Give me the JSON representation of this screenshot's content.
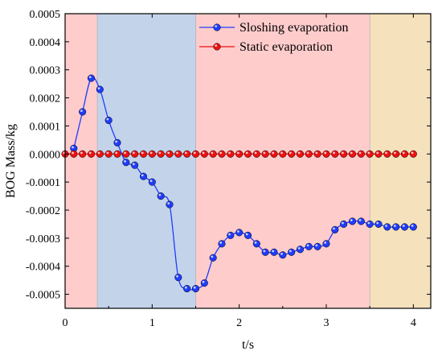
{
  "chart_data": {
    "type": "line",
    "title": "",
    "xlabel": "t/s",
    "ylabel": "BOG Mass/kg",
    "xlim": [
      0,
      4.2
    ],
    "ylim": [
      -0.00055,
      0.0005
    ],
    "x_ticks": [
      0,
      1,
      2,
      3,
      4
    ],
    "x_tick_labels": [
      "0",
      "1",
      "2",
      "3",
      "4"
    ],
    "y_ticks": [
      0.0005,
      0.0004,
      0.0003,
      0.0002,
      0.0001,
      0.0,
      -0.0001,
      -0.0002,
      -0.0003,
      -0.0004,
      -0.0005
    ],
    "y_tick_labels": [
      "0.0005",
      "0.0004",
      "0.0003",
      "0.0002",
      "0.0001",
      "0.0000",
      "-0.0001",
      "-0.0002",
      "-0.0003",
      "-0.0004",
      "-0.0005"
    ],
    "grid": false,
    "legend_position": "top-right",
    "background_bands": [
      {
        "from": 0,
        "to": 0.37,
        "color": "#ffcccc"
      },
      {
        "from": 0.37,
        "to": 1.5,
        "color": "#c3d4ea"
      },
      {
        "from": 1.5,
        "to": 3.5,
        "color": "#ffcccc"
      },
      {
        "from": 3.5,
        "to": 4.2,
        "color": "#f5e2bd"
      }
    ],
    "series": [
      {
        "name": "Sloshing evaporation",
        "color": "#1f3cff",
        "marker": "circle",
        "x": [
          0.1,
          0.2,
          0.3,
          0.4,
          0.5,
          0.6,
          0.7,
          0.8,
          0.9,
          1.0,
          1.1,
          1.2,
          1.3,
          1.4,
          1.5,
          1.6,
          1.7,
          1.8,
          1.9,
          2.0,
          2.1,
          2.2,
          2.3,
          2.4,
          2.5,
          2.6,
          2.7,
          2.8,
          2.9,
          3.0,
          3.1,
          3.2,
          3.3,
          3.4,
          3.5,
          3.6,
          3.7,
          3.8,
          3.9,
          4.0
        ],
        "values": [
          2e-05,
          0.00015,
          0.00027,
          0.00023,
          0.00012,
          4e-05,
          -3e-05,
          -4e-05,
          -8e-05,
          -0.0001,
          -0.00015,
          -0.00018,
          -0.00044,
          -0.00048,
          -0.00048,
          -0.00046,
          -0.00037,
          -0.00032,
          -0.00029,
          -0.00028,
          -0.00029,
          -0.00032,
          -0.00035,
          -0.00035,
          -0.00036,
          -0.00035,
          -0.00034,
          -0.00033,
          -0.00033,
          -0.00032,
          -0.00027,
          -0.00025,
          -0.00024,
          -0.00024,
          -0.00025,
          -0.00025,
          -0.00026,
          -0.00026,
          -0.00026,
          -0.00026
        ]
      },
      {
        "name": "Static evaporation",
        "color": "#ee1111",
        "marker": "circle",
        "x": [
          0.0,
          0.1,
          0.2,
          0.3,
          0.4,
          0.5,
          0.6,
          0.7,
          0.8,
          0.9,
          1.0,
          1.1,
          1.2,
          1.3,
          1.4,
          1.5,
          1.6,
          1.7,
          1.8,
          1.9,
          2.0,
          2.1,
          2.2,
          2.3,
          2.4,
          2.5,
          2.6,
          2.7,
          2.8,
          2.9,
          3.0,
          3.1,
          3.2,
          3.3,
          3.4,
          3.5,
          3.6,
          3.7,
          3.8,
          3.9,
          4.0
        ],
        "values": [
          0,
          0,
          0,
          0,
          0,
          0,
          0,
          0,
          0,
          0,
          0,
          0,
          0,
          0,
          0,
          0,
          0,
          0,
          0,
          0,
          0,
          0,
          0,
          0,
          0,
          0,
          0,
          0,
          0,
          0,
          0,
          0,
          0,
          0,
          0,
          0,
          0,
          0,
          0,
          0,
          0
        ]
      }
    ]
  }
}
